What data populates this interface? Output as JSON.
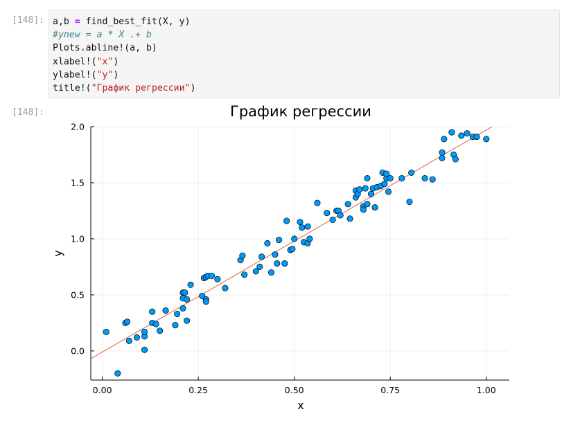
{
  "cell": {
    "input_prompt": "[148]:",
    "output_prompt": "[148]:",
    "code_lines": [
      {
        "tokens": [
          {
            "t": "a,b "
          },
          {
            "t": "=",
            "c": "op"
          },
          {
            "t": " find_best_fit(X, y)"
          }
        ]
      },
      {
        "tokens": [
          {
            "t": "#ynew = a * X .+ b",
            "c": "cm"
          }
        ]
      },
      {
        "tokens": [
          {
            "t": "Plots"
          },
          {
            "t": ".",
            "c": "op"
          },
          {
            "t": "abline!(a, b)"
          }
        ]
      },
      {
        "tokens": [
          {
            "t": "xlabel!("
          },
          {
            "t": "\"x\"",
            "c": "str"
          },
          {
            "t": ")"
          }
        ]
      },
      {
        "tokens": [
          {
            "t": "ylabel!("
          },
          {
            "t": "\"y\"",
            "c": "str"
          },
          {
            "t": ")"
          }
        ]
      },
      {
        "tokens": [
          {
            "t": "title!("
          },
          {
            "t": "\"График регрессии\"",
            "c": "str"
          },
          {
            "t": ")"
          }
        ]
      }
    ]
  },
  "colors": {
    "point_fill": "#009AFA",
    "point_stroke": "#000000",
    "line": "#E26F46",
    "grid": "#ececec",
    "axis": "#000000"
  },
  "chart_data": {
    "type": "scatter",
    "title": "График регрессии",
    "xlabel": "x",
    "ylabel": "y",
    "xlim": [
      -0.03,
      1.06
    ],
    "ylim": [
      -0.26,
      2.0
    ],
    "xticks": [
      0.0,
      0.25,
      0.5,
      0.75,
      1.0
    ],
    "xtick_labels": [
      "0.00",
      "0.25",
      "0.50",
      "0.75",
      "1.00"
    ],
    "yticks": [
      0.0,
      0.5,
      1.0,
      1.5,
      2.0
    ],
    "ytick_labels": [
      "0.0",
      "0.5",
      "1.0",
      "1.5",
      "2.0"
    ],
    "grid": true,
    "legend": "none",
    "line": {
      "slope": 1.98,
      "intercept": -0.01
    },
    "points": [
      [
        0.01,
        0.17
      ],
      [
        0.04,
        -0.2
      ],
      [
        0.06,
        0.25
      ],
      [
        0.065,
        0.26
      ],
      [
        0.07,
        0.09
      ],
      [
        0.09,
        0.12
      ],
      [
        0.11,
        0.01
      ],
      [
        0.11,
        0.13
      ],
      [
        0.11,
        0.17
      ],
      [
        0.13,
        0.35
      ],
      [
        0.13,
        0.25
      ],
      [
        0.14,
        0.24
      ],
      [
        0.15,
        0.18
      ],
      [
        0.165,
        0.36
      ],
      [
        0.19,
        0.23
      ],
      [
        0.195,
        0.33
      ],
      [
        0.21,
        0.38
      ],
      [
        0.21,
        0.47
      ],
      [
        0.21,
        0.52
      ],
      [
        0.215,
        0.52
      ],
      [
        0.22,
        0.27
      ],
      [
        0.22,
        0.46
      ],
      [
        0.23,
        0.59
      ],
      [
        0.26,
        0.49
      ],
      [
        0.265,
        0.65
      ],
      [
        0.27,
        0.66
      ],
      [
        0.27,
        0.46
      ],
      [
        0.27,
        0.44
      ],
      [
        0.275,
        0.67
      ],
      [
        0.285,
        0.67
      ],
      [
        0.3,
        0.64
      ],
      [
        0.32,
        0.56
      ],
      [
        0.36,
        0.81
      ],
      [
        0.365,
        0.85
      ],
      [
        0.37,
        0.68
      ],
      [
        0.4,
        0.71
      ],
      [
        0.41,
        0.75
      ],
      [
        0.415,
        0.84
      ],
      [
        0.43,
        0.96
      ],
      [
        0.44,
        0.7
      ],
      [
        0.45,
        0.86
      ],
      [
        0.455,
        0.78
      ],
      [
        0.46,
        0.99
      ],
      [
        0.475,
        0.78
      ],
      [
        0.48,
        1.16
      ],
      [
        0.49,
        0.9
      ],
      [
        0.495,
        0.91
      ],
      [
        0.5,
        1.0
      ],
      [
        0.515,
        1.15
      ],
      [
        0.52,
        1.1
      ],
      [
        0.525,
        0.97
      ],
      [
        0.535,
        1.11
      ],
      [
        0.535,
        0.96
      ],
      [
        0.54,
        1.0
      ],
      [
        0.56,
        1.32
      ],
      [
        0.585,
        1.23
      ],
      [
        0.6,
        1.17
      ],
      [
        0.61,
        1.25
      ],
      [
        0.615,
        1.25
      ],
      [
        0.62,
        1.21
      ],
      [
        0.64,
        1.31
      ],
      [
        0.645,
        1.18
      ],
      [
        0.66,
        1.37
      ],
      [
        0.66,
        1.43
      ],
      [
        0.665,
        1.4
      ],
      [
        0.67,
        1.44
      ],
      [
        0.68,
        1.29
      ],
      [
        0.68,
        1.26
      ],
      [
        0.685,
        1.45
      ],
      [
        0.69,
        1.54
      ],
      [
        0.69,
        1.31
      ],
      [
        0.7,
        1.4
      ],
      [
        0.705,
        1.45
      ],
      [
        0.71,
        1.28
      ],
      [
        0.715,
        1.46
      ],
      [
        0.725,
        1.47
      ],
      [
        0.73,
        1.59
      ],
      [
        0.735,
        1.49
      ],
      [
        0.74,
        1.54
      ],
      [
        0.74,
        1.58
      ],
      [
        0.745,
        1.42
      ],
      [
        0.75,
        1.54
      ],
      [
        0.78,
        1.54
      ],
      [
        0.8,
        1.33
      ],
      [
        0.805,
        1.59
      ],
      [
        0.84,
        1.54
      ],
      [
        0.86,
        1.53
      ],
      [
        0.885,
        1.72
      ],
      [
        0.885,
        1.77
      ],
      [
        0.89,
        1.89
      ],
      [
        0.91,
        1.95
      ],
      [
        0.915,
        1.75
      ],
      [
        0.92,
        1.71
      ],
      [
        0.935,
        1.92
      ],
      [
        0.95,
        1.94
      ],
      [
        0.965,
        1.91
      ],
      [
        0.975,
        1.91
      ],
      [
        1.0,
        1.89
      ]
    ]
  }
}
